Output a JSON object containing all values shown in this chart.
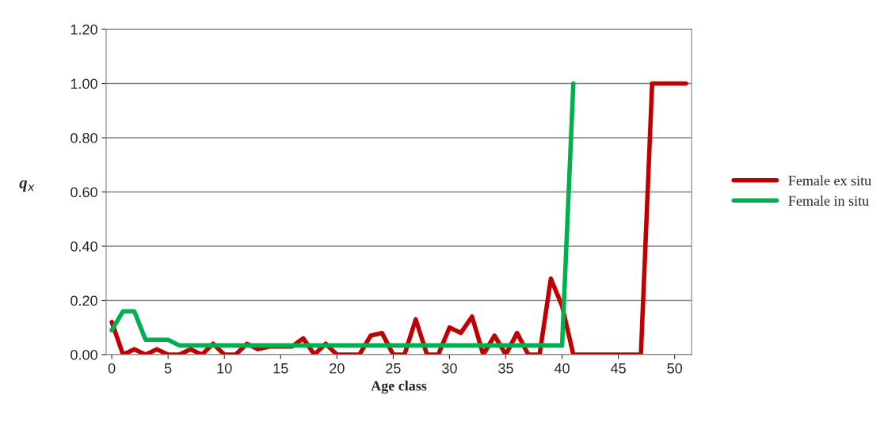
{
  "chart_data": {
    "type": "line",
    "xlabel": "Age class",
    "ylabel": "q$_{x}$",
    "x": [
      0,
      1,
      2,
      3,
      4,
      5,
      6,
      7,
      8,
      9,
      10,
      11,
      12,
      13,
      14,
      15,
      16,
      17,
      18,
      19,
      20,
      21,
      22,
      23,
      24,
      25,
      26,
      27,
      28,
      29,
      30,
      31,
      32,
      33,
      34,
      35,
      36,
      37,
      38,
      39,
      40,
      41,
      42,
      43,
      44,
      45,
      46,
      47,
      48,
      49,
      50,
      51
    ],
    "series": [
      {
        "name": "Female ex situ",
        "color": "#c00000",
        "values": [
          0.12,
          0,
          0.02,
          0,
          0.02,
          0,
          0,
          0.02,
          0,
          0.04,
          0,
          0,
          0.04,
          0.02,
          0.03,
          0.03,
          0.03,
          0.06,
          0,
          0.04,
          0,
          0,
          0,
          0.07,
          0.08,
          0,
          0,
          0.13,
          0,
          0,
          0.1,
          0.08,
          0.14,
          0,
          0.07,
          0,
          0.08,
          0,
          0,
          0.28,
          0.18,
          0,
          0,
          0,
          0,
          0,
          0,
          0,
          1,
          1,
          1,
          1
        ]
      },
      {
        "name": "Female in situ",
        "color": "#00b050",
        "values": [
          0.09,
          0.16,
          0.16,
          0.055,
          0.055,
          0.055,
          0.034,
          0.034,
          0.034,
          0.034,
          0.034,
          0.034,
          0.034,
          0.034,
          0.034,
          0.034,
          0.034,
          0.034,
          0.034,
          0.034,
          0.034,
          0.034,
          0.034,
          0.034,
          0.034,
          0.034,
          0.034,
          0.034,
          0.034,
          0.034,
          0.034,
          0.034,
          0.034,
          0.034,
          0.034,
          0.034,
          0.034,
          0.034,
          0.034,
          0.034,
          0.034,
          1.0,
          null,
          null,
          null,
          null,
          null,
          null,
          null,
          null,
          null,
          null
        ]
      }
    ],
    "xlim": [
      -0.5,
      51.5
    ],
    "xticks": [
      0,
      5,
      10,
      15,
      20,
      25,
      30,
      35,
      40,
      45,
      50
    ],
    "ylim": [
      0,
      1.2
    ],
    "yticks": [
      {
        "value": 0,
        "label": "0.00"
      },
      {
        "value": 0.2,
        "label": "0.20"
      },
      {
        "value": 0.4,
        "label": "0.40"
      },
      {
        "value": 0.6,
        "label": "0.60"
      },
      {
        "value": 0.8,
        "label": "0.80"
      },
      {
        "value": 1.0,
        "label": "1.00"
      },
      {
        "value": 1.2,
        "label": "1.20"
      }
    ],
    "grid": "y",
    "legend": "right",
    "marker": "none",
    "line_style": "solid"
  }
}
